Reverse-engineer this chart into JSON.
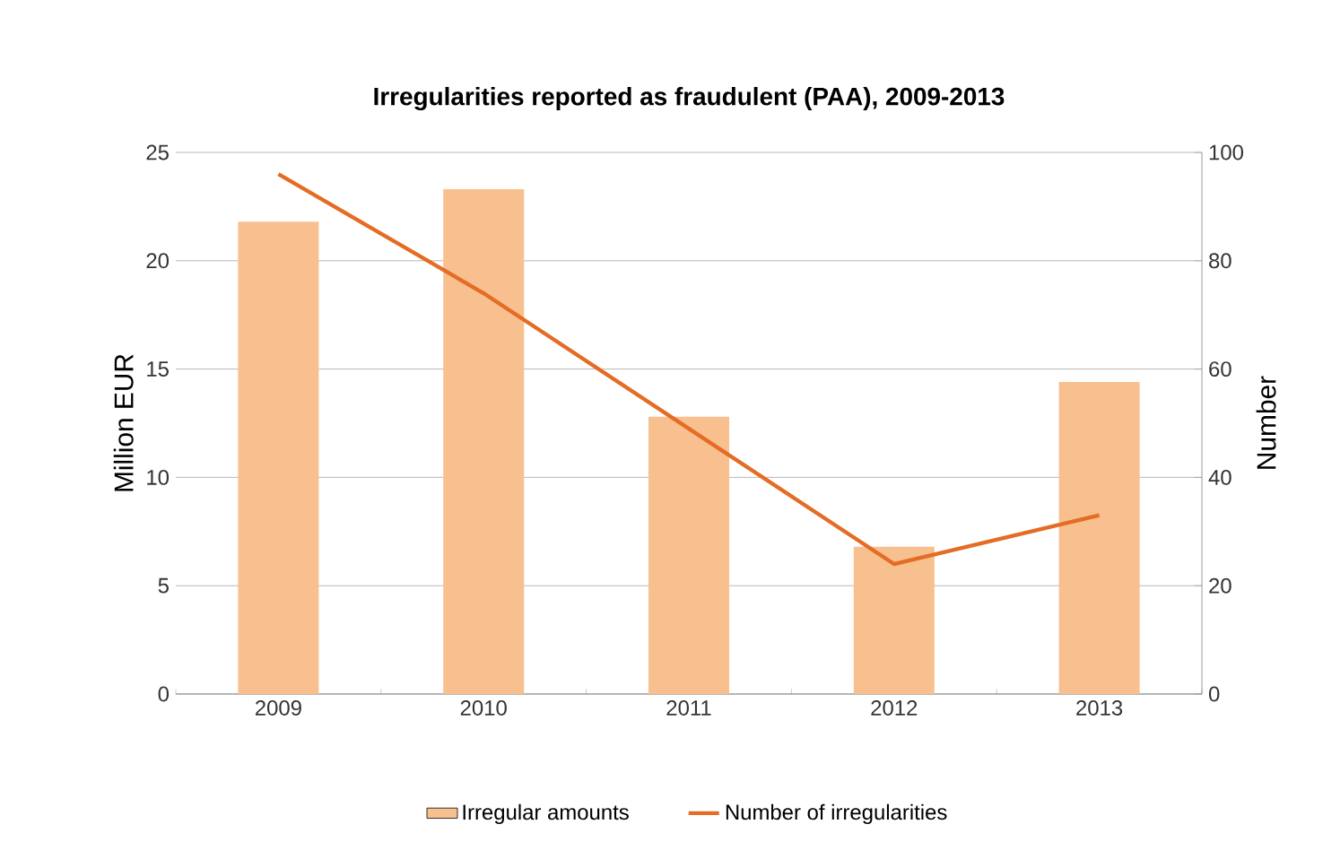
{
  "chart_data": {
    "type": "bar",
    "title": "Irregularities reported as fraudulent (PAA), 2009-2013",
    "ylabel": "Million EUR",
    "y2label": "Number",
    "categories": [
      "2009",
      "2010",
      "2011",
      "2012",
      "2013"
    ],
    "series": [
      {
        "name": "Irregular amounts",
        "color": "#f8bf8f",
        "values": [
          21.8,
          23.3,
          12.8,
          6.8,
          14.4
        ]
      },
      {
        "name": "Number of irregularities",
        "type": "line",
        "axis": "y2",
        "color": "#e46c25",
        "values": [
          96,
          74,
          49,
          24,
          33
        ]
      }
    ],
    "ylim": [
      0,
      25
    ],
    "yticks": [
      0,
      5,
      10,
      15,
      20,
      25
    ],
    "y2lim": [
      0,
      100
    ],
    "y2ticks": [
      0,
      20,
      40,
      60,
      80,
      100
    ],
    "grid": "y",
    "legend": "bottom"
  }
}
